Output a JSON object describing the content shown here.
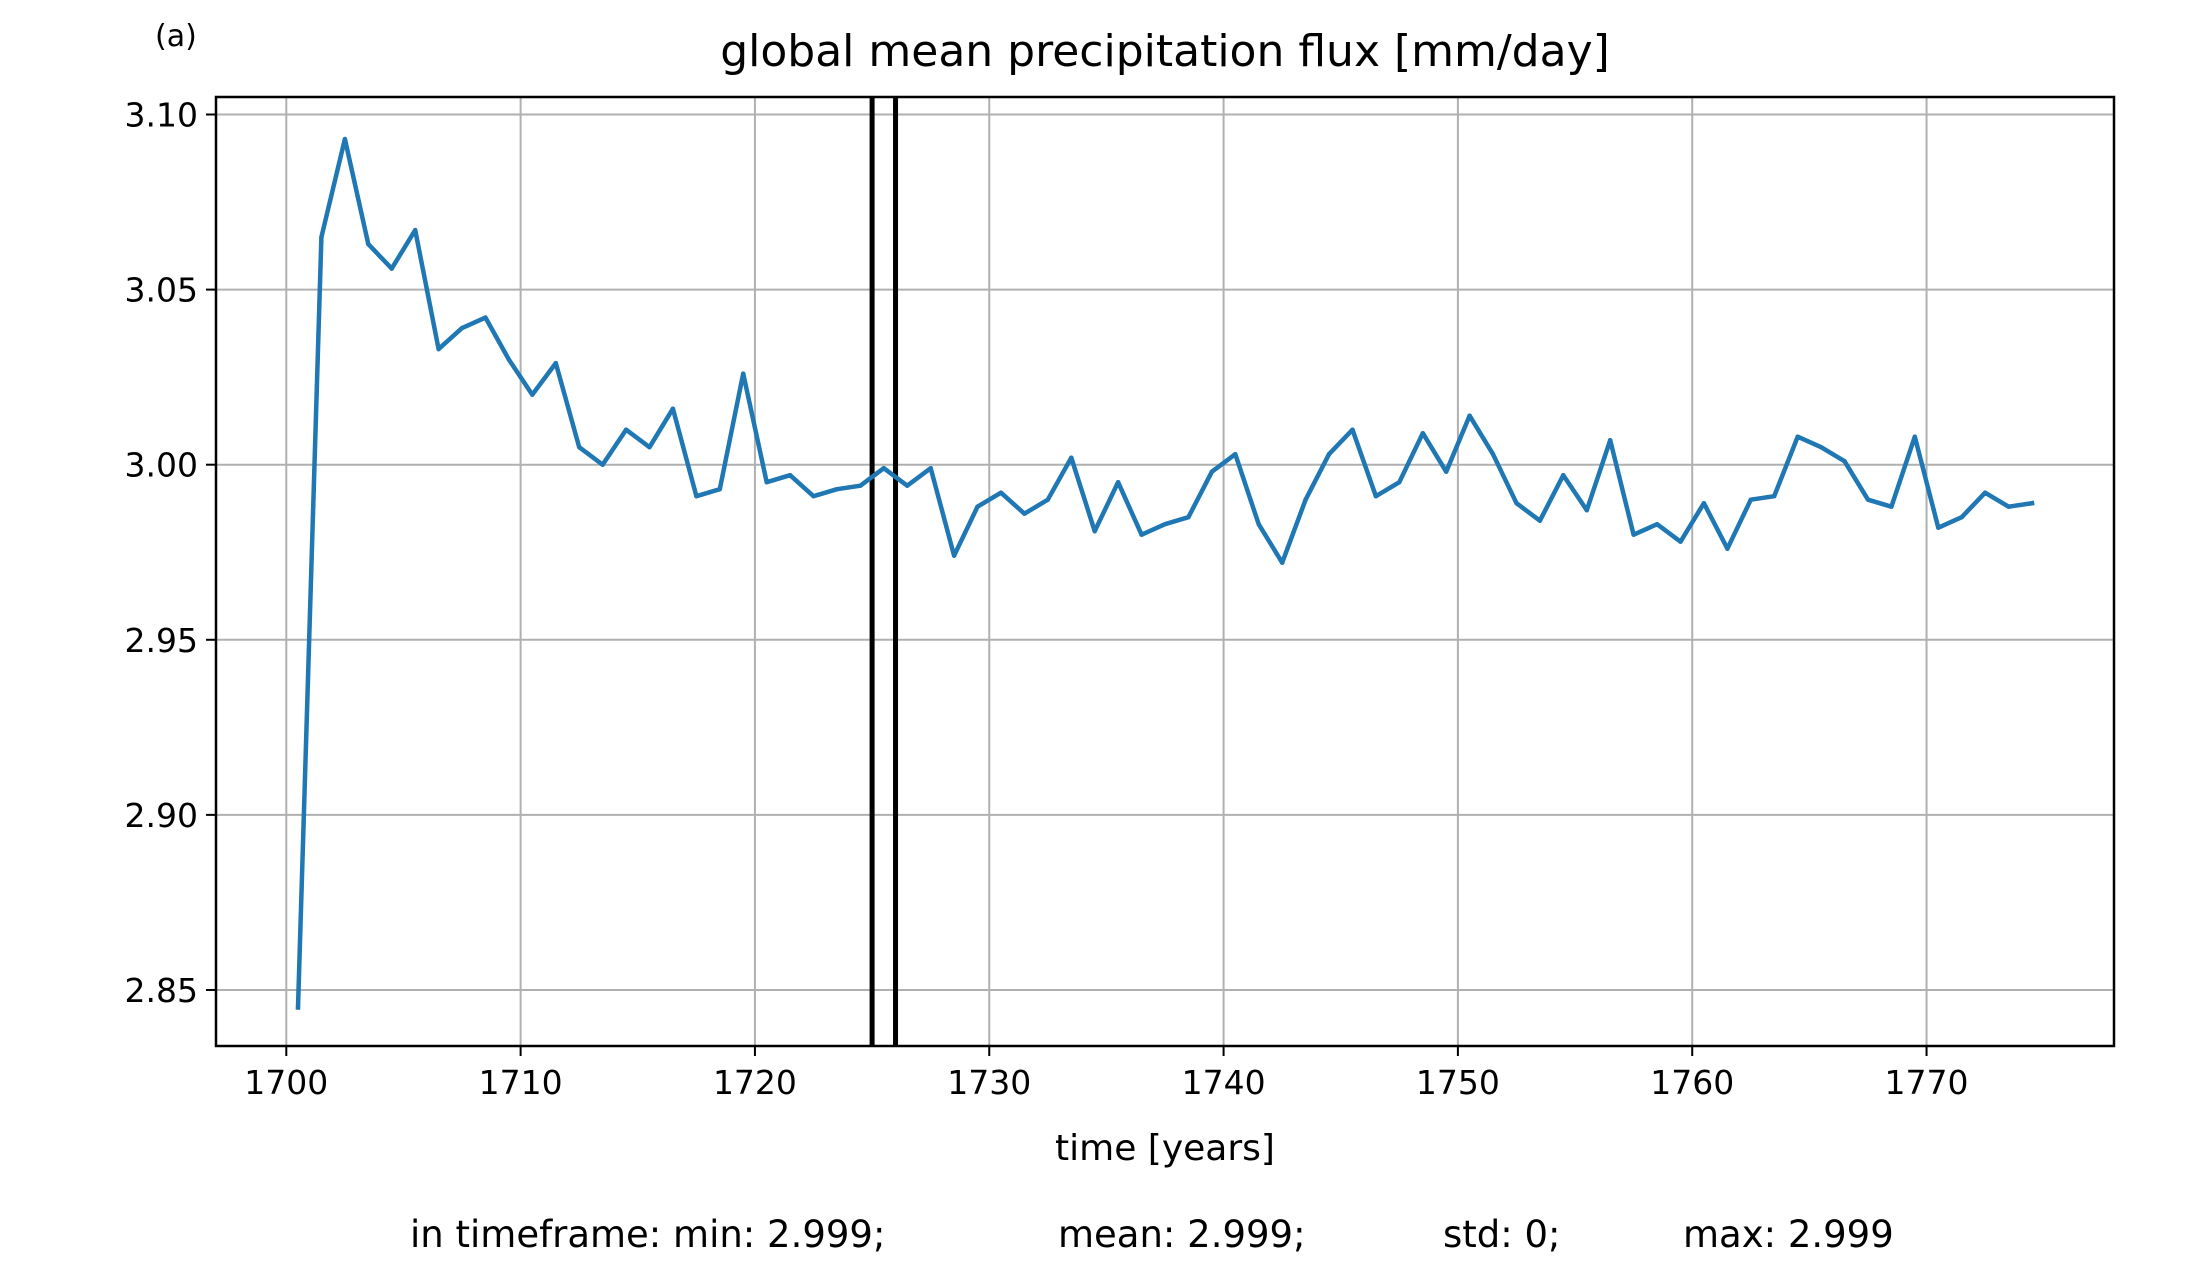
{
  "chart_data": {
    "type": "line",
    "panel_label": "(a)",
    "title": "global mean precipitation flux [mm/day]",
    "xlabel": "time [years]",
    "ylabel": "",
    "xlim": [
      1697,
      1778
    ],
    "ylim": [
      2.834,
      3.105
    ],
    "xticks": [
      1700,
      1710,
      1720,
      1730,
      1740,
      1750,
      1760,
      1770
    ],
    "yticks": [
      2.85,
      2.9,
      2.95,
      3.0,
      3.05,
      3.1
    ],
    "ytick_labels": [
      "2.85",
      "2.90",
      "2.95",
      "3.00",
      "3.05",
      "3.10"
    ],
    "grid": true,
    "line_color": "#1f77b4",
    "vline_color": "#000000",
    "vlines": [
      1725.0,
      1726.0
    ],
    "series": [
      {
        "x": [
          1700.5,
          1701.5,
          1702.5,
          1703.5,
          1704.5,
          1705.5,
          1706.5,
          1707.5,
          1708.5,
          1709.5,
          1710.5,
          1711.5,
          1712.5,
          1713.5,
          1714.5,
          1715.5,
          1716.5,
          1717.5,
          1718.5,
          1719.5,
          1720.5,
          1721.5,
          1722.5,
          1723.5,
          1724.5,
          1725.5,
          1726.5,
          1727.5,
          1728.5,
          1729.5,
          1730.5,
          1731.5,
          1732.5,
          1733.5,
          1734.5,
          1735.5,
          1736.5,
          1737.5,
          1738.5,
          1739.5,
          1740.5,
          1741.5,
          1742.5,
          1743.5,
          1744.5,
          1745.5,
          1746.5,
          1747.5,
          1748.5,
          1749.5,
          1750.5,
          1751.5,
          1752.5,
          1753.5,
          1754.5,
          1755.5,
          1756.5,
          1757.5,
          1758.5,
          1759.5,
          1760.5,
          1761.5,
          1762.5,
          1763.5,
          1764.5,
          1765.5,
          1766.5,
          1767.5,
          1768.5,
          1769.5,
          1770.5,
          1771.5,
          1772.5,
          1773.5,
          1774.5
        ],
        "y": [
          2.845,
          3.065,
          3.093,
          3.063,
          3.056,
          3.067,
          3.033,
          3.039,
          3.042,
          3.03,
          3.02,
          3.029,
          3.005,
          3.0,
          3.01,
          3.005,
          3.016,
          2.991,
          2.993,
          3.026,
          2.995,
          2.997,
          2.991,
          2.993,
          2.994,
          2.999,
          2.994,
          2.999,
          2.974,
          2.988,
          2.992,
          2.986,
          2.99,
          3.002,
          2.981,
          2.995,
          2.98,
          2.983,
          2.985,
          2.998,
          3.003,
          2.983,
          2.972,
          2.99,
          3.003,
          3.01,
          2.991,
          2.995,
          3.009,
          2.998,
          3.014,
          3.003,
          2.989,
          2.984,
          2.997,
          2.987,
          3.007,
          2.98,
          2.983,
          2.978,
          2.989,
          2.976,
          2.99,
          2.991,
          3.008,
          3.005,
          3.001,
          2.99,
          2.988,
          3.008,
          2.982,
          2.985,
          2.992,
          2.988,
          2.989
        ]
      }
    ],
    "footer": {
      "min": "in timeframe: min: 2.999;",
      "mean": "mean: 2.999;",
      "std": "std: 0;",
      "max": "max: 2.999"
    }
  }
}
